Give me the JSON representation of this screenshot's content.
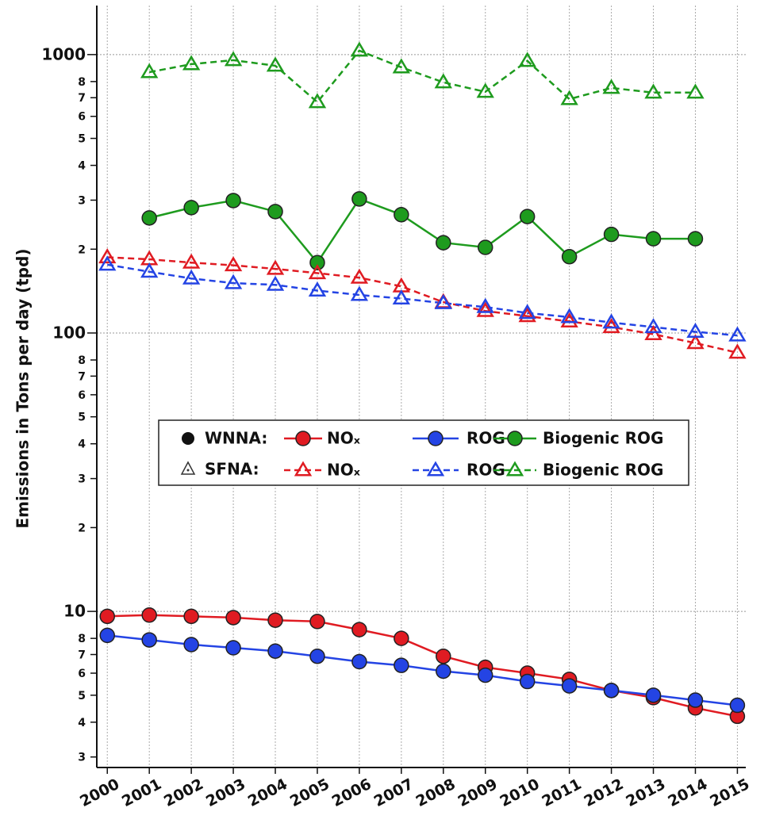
{
  "chart_data": {
    "type": "line",
    "y_label": "Emissions in Tons per day (tpd)",
    "log_y": true,
    "grid": true,
    "x": [
      2000,
      2001,
      2002,
      2003,
      2004,
      2005,
      2006,
      2007,
      2008,
      2009,
      2010,
      2011,
      2012,
      2013,
      2014,
      2015
    ],
    "xlim": [
      1999.75,
      2015.2
    ],
    "xticks": [
      2000,
      2001,
      2002,
      2003,
      2004,
      2005,
      2006,
      2007,
      2008,
      2009,
      2010,
      2011,
      2012,
      2013,
      2014,
      2015
    ],
    "ylim": [
      2.75,
      1500
    ],
    "yticks": [
      3,
      4,
      5,
      6,
      7,
      8,
      10,
      {
        "value": 20,
        "label": "2"
      },
      {
        "value": 30,
        "label": "3"
      },
      {
        "value": 40,
        "label": "4"
      },
      {
        "value": 50,
        "label": "5"
      },
      {
        "value": 60,
        "label": "6"
      },
      {
        "value": 70,
        "label": "7"
      },
      {
        "value": 80,
        "label": "8"
      },
      100,
      {
        "value": 200,
        "label": "2"
      },
      {
        "value": 300,
        "label": "3"
      },
      {
        "value": 400,
        "label": "4"
      },
      {
        "value": 500,
        "label": "5"
      },
      {
        "value": 600,
        "label": "6"
      },
      {
        "value": 700,
        "label": "7"
      },
      {
        "value": 800,
        "label": "8"
      },
      1000
    ],
    "legend_groups": [
      "WNNA:",
      "SFNA:"
    ],
    "series": [
      {
        "name": "NOₓ",
        "color": "#e01b22",
        "marker": "circle",
        "dashed": false,
        "values": [
          9.6,
          9.7,
          9.6,
          9.5,
          9.3,
          9.2,
          8.6,
          8.0,
          6.9,
          6.3,
          6.0,
          5.7,
          5.2,
          4.9,
          4.5,
          4.2
        ]
      },
      {
        "name": "ROG",
        "color": "#2444e4",
        "marker": "circle",
        "dashed": false,
        "values": [
          8.2,
          7.9,
          7.6,
          7.4,
          7.2,
          6.9,
          6.6,
          6.4,
          6.1,
          5.9,
          5.6,
          5.4,
          5.2,
          5.0,
          4.8,
          4.6
        ]
      },
      {
        "name": "Biogenic ROG",
        "color": "#1e9b1e",
        "marker": "circle",
        "dashed": false,
        "values": [
          null,
          259,
          282,
          299,
          273,
          179,
          303,
          266,
          211,
          203,
          262,
          188,
          226,
          218,
          218,
          null
        ]
      },
      {
        "name": "NOₓ",
        "color": "#e01b22",
        "marker": "triangle",
        "dashed": true,
        "values": [
          187,
          184,
          179,
          175,
          170,
          164,
          158,
          147,
          129,
          120,
          115,
          110,
          105,
          99,
          92,
          85
        ]
      },
      {
        "name": "ROG",
        "color": "#2444e4",
        "marker": "triangle",
        "dashed": true,
        "values": [
          176,
          166,
          157,
          151,
          149,
          142,
          137,
          133,
          128,
          124,
          118,
          114,
          109,
          105,
          101,
          98
        ]
      },
      {
        "name": "Biogenic ROG",
        "color": "#1e9b1e",
        "marker": "triangle",
        "dashed": true,
        "values": [
          null,
          865,
          924,
          955,
          912,
          675,
          1033,
          900,
          795,
          735,
          949,
          692,
          759,
          730,
          730,
          null
        ]
      }
    ]
  }
}
